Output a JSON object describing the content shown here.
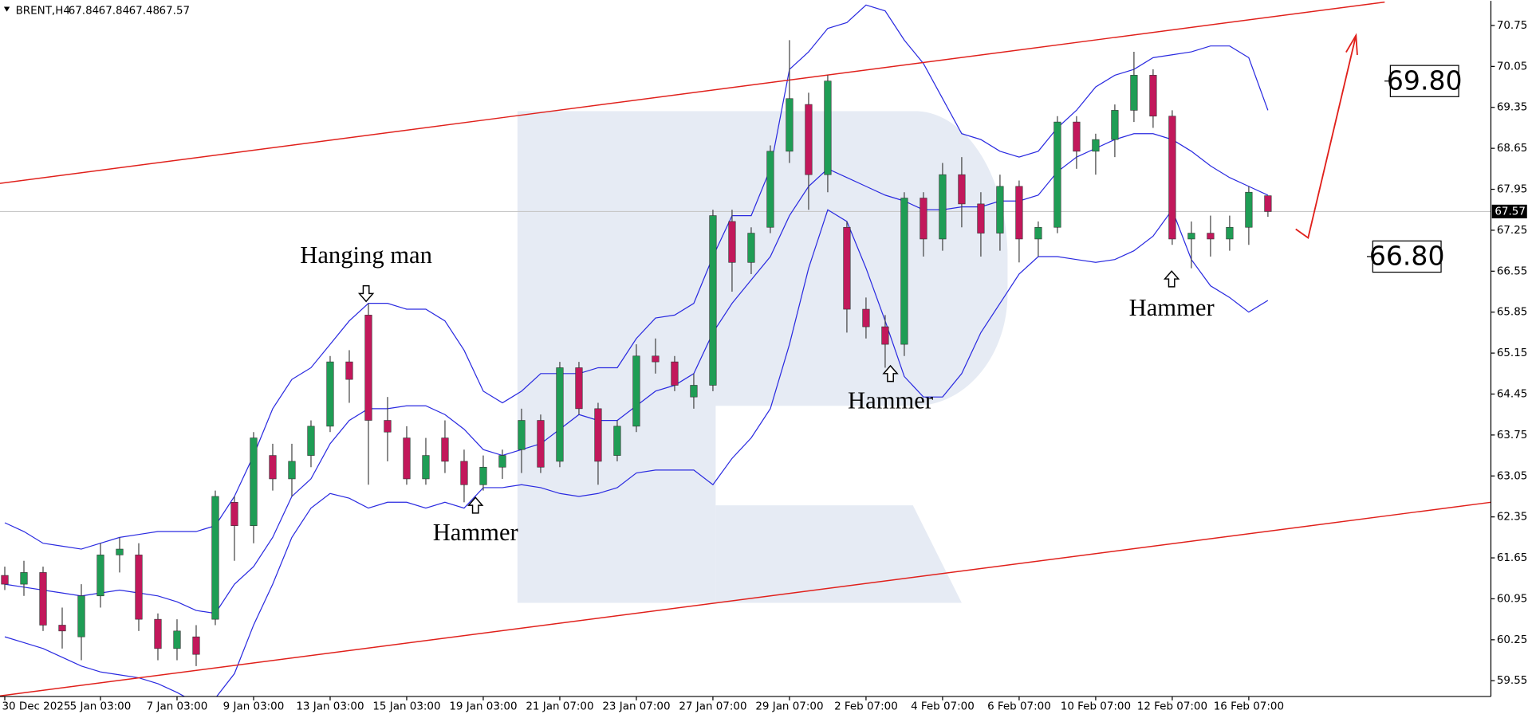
{
  "chart_data": {
    "type": "candlestick",
    "symbol": "BRENT,H4",
    "open": [
      61.35,
      61.2,
      61.4,
      60.5,
      60.3,
      61.0,
      61.7,
      61.7,
      60.6,
      60.1,
      60.3,
      60.6,
      62.6,
      62.2,
      63.4,
      63.0,
      63.4,
      63.9,
      65.0,
      65.8,
      64.0,
      63.7,
      63.0,
      63.7,
      63.3,
      62.9,
      63.2,
      63.5,
      64.0,
      63.3,
      64.9,
      64.2,
      63.4,
      63.9,
      65.1,
      65.0,
      64.4,
      64.6,
      67.4,
      66.7,
      67.3,
      68.6,
      69.4,
      68.2,
      67.3,
      65.9,
      65.6,
      65.3,
      67.8,
      67.1,
      68.2,
      67.7,
      67.2,
      68.0,
      67.1,
      67.3,
      69.1,
      68.6,
      68.8,
      69.3,
      69.9,
      69.2,
      67.1,
      67.2,
      67.1,
      67.3,
      67.84
    ],
    "high": [
      61.5,
      61.6,
      61.5,
      60.8,
      61.2,
      61.9,
      62.0,
      61.9,
      60.7,
      60.6,
      60.5,
      62.8,
      62.7,
      63.8,
      63.6,
      63.6,
      64.0,
      65.1,
      65.2,
      66.0,
      64.4,
      63.9,
      63.7,
      64.0,
      63.5,
      63.4,
      63.5,
      64.2,
      64.1,
      65.0,
      65.0,
      64.3,
      64.0,
      65.3,
      65.4,
      65.1,
      64.8,
      67.6,
      67.6,
      67.3,
      68.7,
      70.5,
      69.6,
      69.9,
      67.4,
      66.1,
      65.8,
      67.9,
      67.9,
      68.4,
      68.5,
      67.9,
      68.2,
      68.1,
      67.4,
      69.2,
      69.2,
      68.9,
      69.4,
      70.3,
      70.0,
      69.3,
      67.4,
      67.5,
      67.5,
      68.0,
      67.84
    ],
    "low": [
      61.1,
      61.0,
      60.4,
      60.1,
      59.9,
      60.8,
      61.4,
      60.4,
      59.9,
      59.9,
      59.8,
      60.5,
      61.6,
      61.9,
      62.8,
      62.7,
      63.2,
      63.8,
      64.3,
      62.9,
      63.3,
      62.9,
      62.9,
      63.1,
      62.6,
      62.8,
      63.0,
      63.1,
      63.1,
      63.2,
      64.1,
      62.9,
      63.3,
      63.8,
      64.8,
      64.5,
      64.2,
      64.5,
      66.2,
      66.5,
      67.2,
      68.4,
      67.6,
      67.9,
      65.5,
      65.4,
      64.9,
      65.1,
      66.8,
      66.9,
      67.3,
      66.8,
      66.9,
      66.7,
      66.8,
      67.2,
      68.3,
      68.2,
      68.5,
      69.1,
      69.0,
      67.0,
      66.6,
      66.8,
      66.9,
      67.0,
      67.48
    ],
    "close": [
      61.2,
      61.4,
      60.5,
      60.4,
      61.0,
      61.7,
      61.8,
      60.6,
      60.1,
      60.4,
      60.0,
      62.7,
      62.2,
      63.7,
      63.0,
      63.3,
      63.9,
      65.0,
      64.7,
      64.0,
      63.8,
      63.0,
      63.4,
      63.3,
      62.9,
      63.2,
      63.4,
      64.0,
      63.2,
      64.9,
      64.2,
      63.3,
      63.9,
      65.1,
      65.0,
      64.6,
      64.6,
      67.5,
      66.7,
      67.2,
      68.6,
      69.5,
      68.2,
      69.8,
      65.9,
      65.6,
      65.3,
      67.8,
      67.1,
      68.2,
      67.7,
      67.2,
      68.0,
      67.1,
      67.3,
      69.1,
      68.6,
      68.8,
      69.3,
      69.9,
      69.2,
      67.1,
      67.2,
      67.1,
      67.3,
      67.9,
      67.57
    ],
    "colors": {
      "up": "#1f9d55",
      "down": "#c2185b",
      "wick": "#444444",
      "price_line": "#c8c8c8"
    },
    "bands": {
      "color": "#2a2ae0",
      "upper": [
        62.25,
        62.1,
        61.9,
        61.85,
        61.8,
        61.9,
        62.0,
        62.05,
        62.1,
        62.1,
        62.1,
        62.2,
        62.7,
        63.4,
        64.2,
        64.7,
        64.9,
        65.3,
        65.7,
        66.0,
        66.0,
        65.9,
        65.9,
        65.7,
        65.2,
        64.5,
        64.3,
        64.5,
        64.8,
        64.8,
        64.8,
        64.9,
        64.9,
        65.4,
        65.75,
        65.8,
        66.0,
        66.8,
        67.5,
        67.5,
        68.3,
        70.0,
        70.3,
        70.7,
        70.8,
        71.1,
        71.0,
        70.5,
        70.1,
        69.5,
        68.9,
        68.8,
        68.6,
        68.5,
        68.6,
        69.0,
        69.3,
        69.7,
        69.9,
        70.0,
        70.2,
        70.25,
        70.3,
        70.4,
        70.4,
        70.2,
        69.3
      ],
      "middle": [
        61.2,
        61.15,
        61.1,
        61.05,
        61.0,
        61.05,
        61.1,
        61.05,
        61.0,
        60.9,
        60.75,
        60.7,
        61.2,
        61.5,
        62.0,
        62.7,
        63.0,
        63.6,
        64.0,
        64.2,
        64.2,
        64.25,
        64.25,
        64.1,
        63.85,
        63.5,
        63.4,
        63.5,
        63.6,
        63.85,
        64.1,
        64.0,
        64.0,
        64.25,
        64.5,
        64.6,
        64.8,
        65.5,
        66.0,
        66.4,
        66.8,
        67.5,
        68.0,
        68.3,
        68.15,
        68.0,
        67.85,
        67.75,
        67.6,
        67.6,
        67.65,
        67.65,
        67.75,
        67.75,
        67.85,
        68.25,
        68.5,
        68.65,
        68.8,
        68.9,
        68.9,
        68.8,
        68.6,
        68.35,
        68.15,
        68.0,
        67.85
      ],
      "lower": [
        60.3,
        60.2,
        60.1,
        59.95,
        59.8,
        59.7,
        59.65,
        59.6,
        59.5,
        59.35,
        59.17,
        59.25,
        59.67,
        60.5,
        61.2,
        62.0,
        62.5,
        62.75,
        62.67,
        62.5,
        62.6,
        62.6,
        62.5,
        62.6,
        62.5,
        62.85,
        62.85,
        62.9,
        62.85,
        62.75,
        62.7,
        62.75,
        62.85,
        63.1,
        63.15,
        63.15,
        63.15,
        62.9,
        63.35,
        63.7,
        64.2,
        65.3,
        66.6,
        67.6,
        67.4,
        66.6,
        65.7,
        64.75,
        64.4,
        64.4,
        64.8,
        65.5,
        66.0,
        66.5,
        66.8,
        66.8,
        66.75,
        66.7,
        66.75,
        66.9,
        67.15,
        67.6,
        66.75,
        66.3,
        66.1,
        65.85,
        66.05
      ]
    },
    "trend_lines": [
      {
        "color": "#e0201b",
        "points": [
          [
            -0.26,
            68.05
          ],
          [
            72.1,
            71.15
          ]
        ]
      },
      {
        "color": "#e0201b",
        "points": [
          [
            -0.26,
            59.29
          ],
          [
            77.65,
            62.6
          ]
        ]
      }
    ],
    "forecast": {
      "color": "#e0201b",
      "points": [
        [
          67.45,
          67.27
        ],
        [
          68.1,
          67.12
        ],
        [
          70.6,
          70.58
        ]
      ]
    },
    "annotations": [
      "Hanging man",
      "Hammer",
      "Hammer",
      "Hammer"
    ],
    "levels": [
      {
        "value": 69.8,
        "label": "69.80"
      },
      {
        "value": 66.8,
        "label": "66.80"
      }
    ],
    "xlim": [
      -0.25,
      77.65
    ],
    "ylim": [
      59.28,
      71.17
    ],
    "yticks": [
      59.55,
      60.25,
      60.95,
      61.65,
      62.35,
      63.05,
      63.75,
      64.45,
      65.15,
      65.85,
      66.55,
      67.25,
      67.95,
      68.65,
      69.35,
      70.05,
      70.75
    ],
    "xticks": [
      {
        "value": 0,
        "label": "30 Dec 2025"
      },
      {
        "value": 5,
        "label": "5 Jan 03:00"
      },
      {
        "value": 9,
        "label": "7 Jan 03:00"
      },
      {
        "value": 13,
        "label": "9 Jan 03:00"
      },
      {
        "value": 17,
        "label": "13 Jan 03:00"
      },
      {
        "value": 21,
        "label": "15 Jan 03:00"
      },
      {
        "value": 25,
        "label": "19 Jan 03:00"
      },
      {
        "value": 29,
        "label": "21 Jan 07:00"
      },
      {
        "value": 33,
        "label": "23 Jan 07:00"
      },
      {
        "value": 37,
        "label": "27 Jan 07:00"
      },
      {
        "value": 41,
        "label": "29 Jan 07:00"
      },
      {
        "value": 45,
        "label": "2 Feb 07:00"
      },
      {
        "value": 49,
        "label": "4 Feb 07:00"
      },
      {
        "value": 53,
        "label": "6 Feb 07:00"
      },
      {
        "value": 57,
        "label": "10 Feb 07:00"
      },
      {
        "value": 61,
        "label": "12 Feb 07:00"
      },
      {
        "value": 65,
        "label": "16 Feb 07:00"
      }
    ]
  }
}
